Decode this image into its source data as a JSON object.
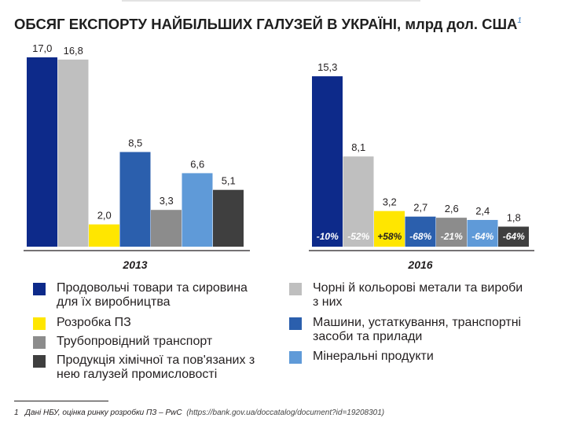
{
  "title": "ОБСЯГ ЕКСПОРТУ НАЙБІЛЬШИХ ГАЛУЗЕЙ В УКРАЇНІ, млрд дол. США",
  "title_note_marker": "1",
  "colors": {
    "food": "#0d2a8a",
    "metals": "#bfbfbf",
    "software": "#ffe600",
    "machinery": "#2b5fad",
    "pipeline": "#8c8c8c",
    "minerals": "#5f9ad8",
    "chemical": "#3f3f3f"
  },
  "chart_data": [
    {
      "type": "bar",
      "title": "2013",
      "categories": [
        "Продовольчі товари та сировина для їх виробництва",
        "Чорні й кольорові метали та вироби з них",
        "Розробка ПЗ",
        "Машини, устаткування, транспортні засоби та прилади",
        "Трубопровідний транспорт",
        "Мінеральні продукти",
        "Продукція хімічної та пов'язаних з нею галузей промисловості"
      ],
      "values": [
        17.0,
        16.8,
        2.0,
        8.5,
        3.3,
        6.6,
        5.1
      ],
      "value_labels": [
        "17,0",
        "16,8",
        "2,0",
        "8,5",
        "3,3",
        "6,6",
        "5,1"
      ],
      "ylim": [
        0,
        17.5
      ]
    },
    {
      "type": "bar",
      "title": "2016",
      "categories": [
        "Продовольчі товари та сировина для їх виробництва",
        "Чорні й кольорові метали та вироби з них",
        "Розробка ПЗ",
        "Машини, устаткування, транспортні засоби та прилади",
        "Трубопровідний транспорт",
        "Мінеральні продукти",
        "Продукція хімічної та пов'язаних з нею галузей промисловості"
      ],
      "values": [
        15.3,
        8.1,
        3.2,
        2.7,
        2.6,
        2.4,
        1.8
      ],
      "value_labels": [
        "15,3",
        "8,1",
        "3,2",
        "2,7",
        "2,6",
        "2,4",
        "1,8"
      ],
      "change_labels": [
        "-10%",
        "-52%",
        "+58%",
        "-68%",
        "-21%",
        "-64%",
        "-64%"
      ],
      "ylim": [
        0,
        17.5
      ]
    }
  ],
  "legend": [
    {
      "label": "Продовольчі товари та сировина для їх виробництва",
      "color": "#0d2a8a"
    },
    {
      "label": "Розробка ПЗ",
      "color": "#ffe600"
    },
    {
      "label": "Трубопровідний транспорт",
      "color": "#8c8c8c"
    },
    {
      "label": "Продукція хімічної та пов'язаних з нею галузей промисловості",
      "color": "#3f3f3f"
    },
    {
      "label": "Чорні й кольорові метали та вироби з них",
      "color": "#bfbfbf"
    },
    {
      "label": "Машини, устаткування, транспортні засоби та прилади",
      "color": "#2b5fad"
    },
    {
      "label": "Мінеральні продукти",
      "color": "#5f9ad8"
    }
  ],
  "footnote": {
    "marker": "1",
    "text": "Дані НБУ, оцінка ринку розробки ПЗ – PwC",
    "url": "(https://bank.gov.ua/doccatalog/document?id=19208301)"
  }
}
